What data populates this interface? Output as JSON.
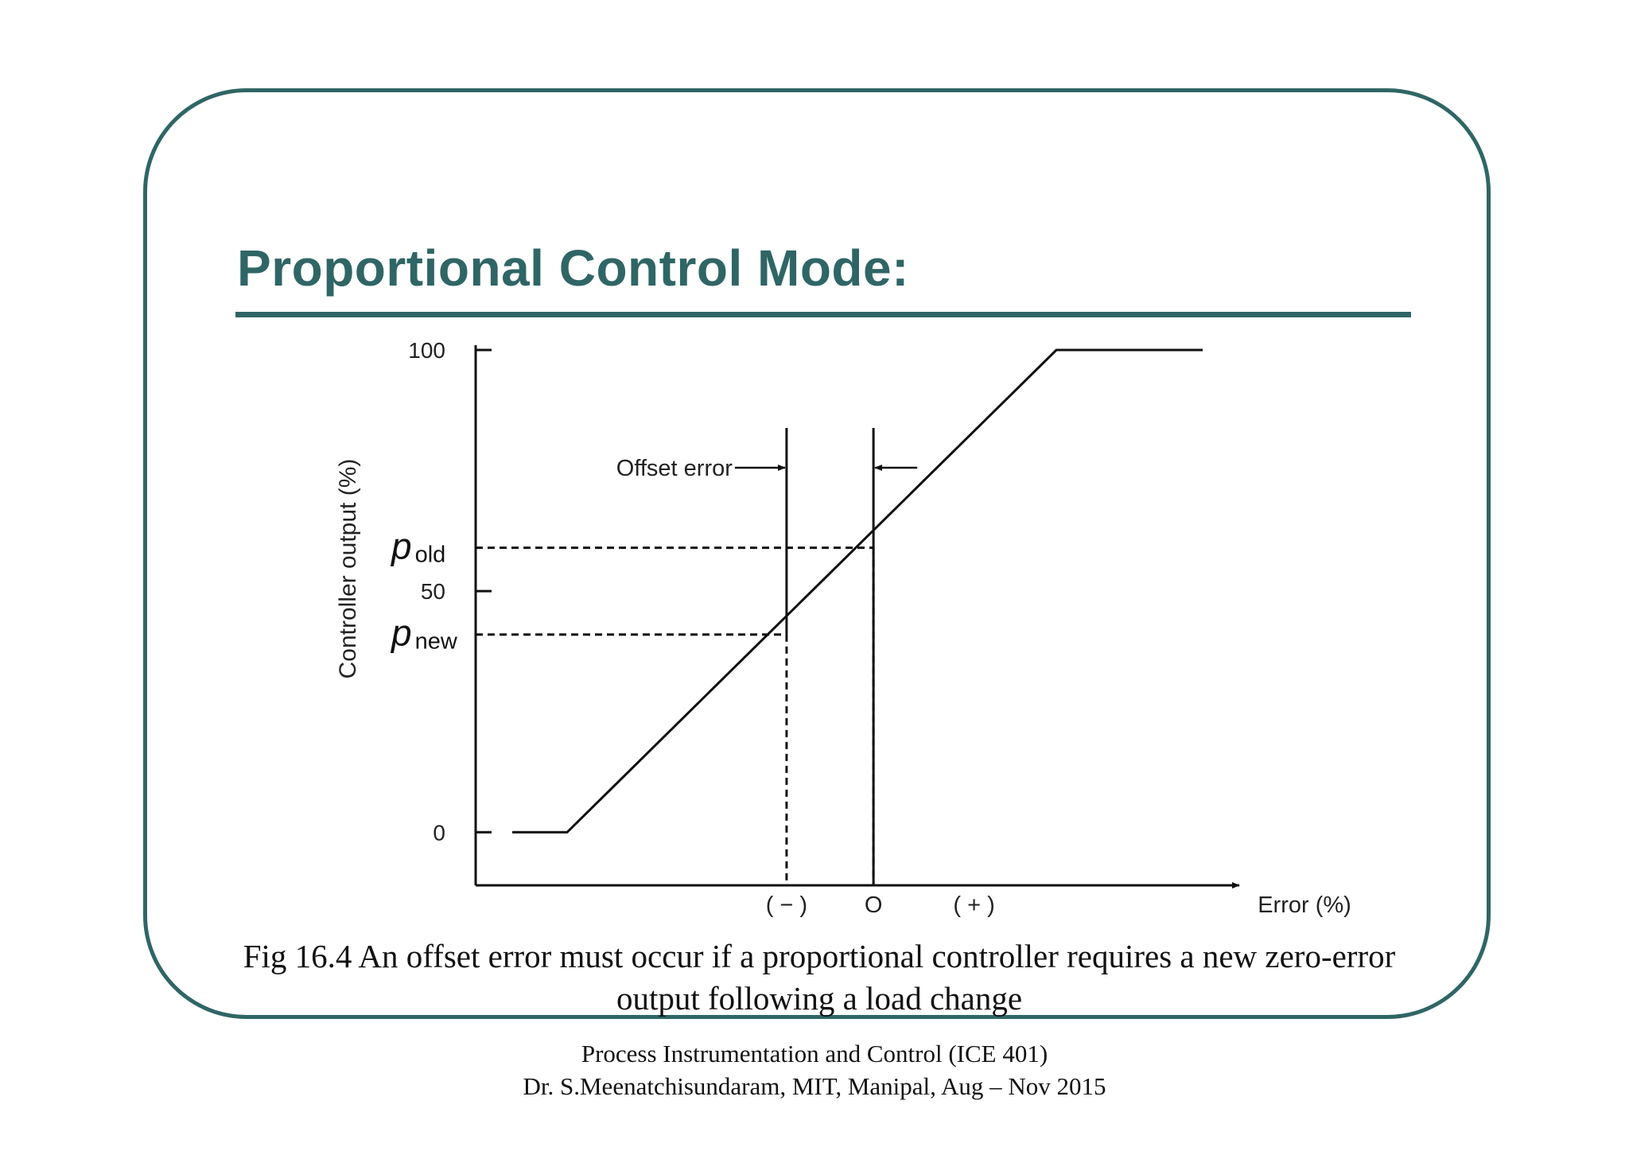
{
  "slide": {
    "title": "Proportional Control Mode:",
    "caption_line1": "Fig 16.4 An offset error must occur if a proportional controller requires a new zero-error",
    "caption_line2": "output following a load change",
    "footer_line1": "Process Instrumentation and Control (ICE 401)",
    "footer_line2": "Dr. S.Meenatchisundaram, MIT, Manipal, Aug – Nov 2015",
    "accent_color": "#2f6665"
  },
  "chart_data": {
    "type": "line",
    "xlabel": "Error (%)",
    "ylabel": "Controller output (%)",
    "y_ticks": [
      {
        "label": "100",
        "value": 100
      },
      {
        "label": "50",
        "value": 50
      },
      {
        "label": "0",
        "value": 0
      }
    ],
    "x_labels": [
      {
        "label": "( − )",
        "value": -9.5
      },
      {
        "label": "O",
        "value": 0
      },
      {
        "label": "( + )",
        "value": 11
      }
    ],
    "series": [
      {
        "x": [
          -39.5,
          -33.5,
          20,
          36
        ],
        "y": [
          0,
          0,
          100,
          100
        ]
      }
    ],
    "markers": [
      {
        "name": "p_old",
        "symbol": "p",
        "subscript": "old",
        "y": 59,
        "x": 0
      },
      {
        "name": "p_new",
        "symbol": "p",
        "subscript": "new",
        "y": 41,
        "x": -9.5
      }
    ],
    "annotation": {
      "text": "Offset error",
      "x_from": -9.5,
      "x_to": 0
    },
    "xlim": [
      -43.5,
      40
    ],
    "ylim": [
      -11,
      100
    ],
    "grid": false
  }
}
